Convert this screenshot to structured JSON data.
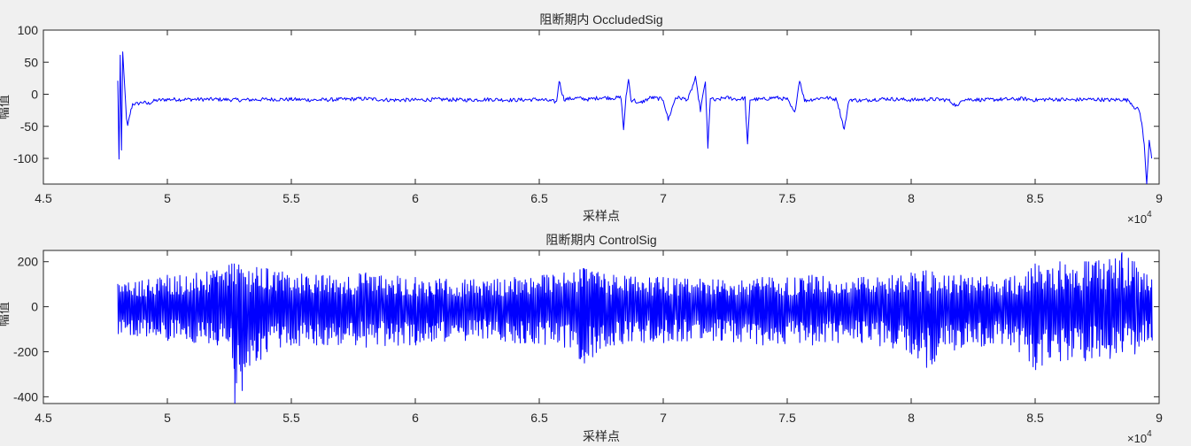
{
  "chart_data": [
    {
      "type": "line",
      "title": "阻断期内 OccludedSig",
      "xlabel": "采样点",
      "ylabel": "幅值",
      "xlim": [
        45000,
        90000
      ],
      "ylim": [
        -140,
        100
      ],
      "x_ticks": [
        45000,
        50000,
        55000,
        60000,
        65000,
        70000,
        75000,
        80000,
        85000,
        90000
      ],
      "x_tick_labels": [
        "4.5",
        "5",
        "5.5",
        "6",
        "6.5",
        "7",
        "7.5",
        "8",
        "8.5",
        "9"
      ],
      "x_exponent": "×10",
      "x_exponent_power": "4",
      "y_ticks": [
        100,
        50,
        0,
        -50,
        -100
      ],
      "y_tick_labels": [
        "100",
        "50",
        "0",
        "-50",
        "-100"
      ],
      "grid": false,
      "color": "#0000ff",
      "series": [
        {
          "x": [
            48000,
            48050,
            48100,
            48150,
            48200,
            48250,
            48300,
            48350,
            48400,
            48500,
            48600,
            48800,
            49000,
            49200,
            49500,
            50000,
            51000,
            52000,
            53000,
            54000,
            55000,
            56000,
            57000,
            58000,
            59000,
            60000,
            61000,
            62000,
            63000,
            64000,
            65000,
            65700,
            65800,
            65900,
            66000,
            66500,
            67000,
            67500,
            68000,
            68300,
            68400,
            68500,
            68600,
            68700,
            68800,
            69000,
            69500,
            70000,
            70200,
            70500,
            71000,
            71300,
            71500,
            71700,
            71800,
            71900,
            72000,
            72100,
            72500,
            73000,
            73300,
            73400,
            73500,
            74000,
            74500,
            75000,
            75300,
            75500,
            75700,
            76000,
            76500,
            77000,
            77300,
            77500,
            78000,
            78500,
            79000,
            79500,
            80000,
            80500,
            81000,
            81500,
            81900,
            82000,
            82500,
            83000,
            83500,
            84000,
            84500,
            85000,
            85500,
            86000,
            86500,
            87000,
            87500,
            88000,
            88500,
            88800,
            89000,
            89200,
            89300,
            89400,
            89500,
            89600,
            89700
          ],
          "y": [
            20,
            -100,
            60,
            -90,
            65,
            30,
            0,
            -40,
            -50,
            -30,
            -15,
            -15,
            -12,
            -15,
            -10,
            -8,
            -8,
            -8,
            -9,
            -8,
            -8,
            -9,
            -8,
            -7,
            -9,
            -9,
            -8,
            -9,
            -8,
            -9,
            -8,
            -12,
            22,
            5,
            -8,
            -6,
            -8,
            -5,
            -6,
            -5,
            -55,
            -5,
            25,
            -10,
            -8,
            -15,
            -5,
            -8,
            -40,
            -5,
            -8,
            25,
            -25,
            20,
            -85,
            -5,
            -8,
            -10,
            -5,
            -8,
            -6,
            -80,
            -8,
            -8,
            -5,
            -8,
            -30,
            23,
            -10,
            -8,
            -5,
            -8,
            -55,
            -8,
            -10,
            -8,
            -7,
            -8,
            -9,
            -8,
            -8,
            -9,
            -20,
            -8,
            -8,
            -9,
            -8,
            -8,
            -7,
            -9,
            -8,
            -8,
            -9,
            -8,
            -8,
            -9,
            -8,
            -10,
            -20,
            -25,
            -45,
            -80,
            -140,
            -70,
            -100
          ]
        }
      ]
    },
    {
      "type": "line",
      "title": "阻断期内 ControlSig",
      "xlabel": "采样点",
      "ylabel": "幅值",
      "xlim": [
        45000,
        90000
      ],
      "ylim": [
        -430,
        250
      ],
      "x_ticks": [
        45000,
        50000,
        55000,
        60000,
        65000,
        70000,
        75000,
        80000,
        85000,
        90000
      ],
      "x_tick_labels": [
        "4.5",
        "5",
        "5.5",
        "6",
        "6.5",
        "7",
        "7.5",
        "8",
        "8.5",
        "9"
      ],
      "x_exponent": "×10",
      "x_exponent_power": "4",
      "y_ticks": [
        200,
        0,
        -200,
        -400
      ],
      "y_tick_labels": [
        "200",
        "0",
        "-200",
        "-400"
      ],
      "grid": false,
      "color": "#0000ff",
      "series": [
        {
          "x_start": 48000,
          "x_end": 89700,
          "envelope_x": [
            48000,
            50000,
            52000,
            52600,
            52700,
            54000,
            56000,
            58000,
            60000,
            62000,
            64000,
            66000,
            66800,
            68000,
            70000,
            72000,
            74000,
            76000,
            78000,
            80000,
            80600,
            82000,
            84000,
            85000,
            86000,
            87000,
            88000,
            88500,
            89000,
            89700
          ],
          "envelope_upper": [
            100,
            140,
            160,
            190,
            190,
            170,
            140,
            150,
            130,
            120,
            130,
            150,
            170,
            140,
            130,
            120,
            130,
            140,
            130,
            150,
            160,
            140,
            130,
            190,
            200,
            200,
            210,
            240,
            200,
            120
          ],
          "envelope_lower": [
            -120,
            -150,
            -170,
            -160,
            -430,
            -200,
            -170,
            -180,
            -170,
            -150,
            -160,
            -180,
            -250,
            -170,
            -160,
            -150,
            -170,
            -170,
            -160,
            -210,
            -270,
            -180,
            -170,
            -280,
            -240,
            -240,
            -230,
            -200,
            -210,
            -150
          ],
          "noise_period_samples": 55
        }
      ]
    }
  ]
}
